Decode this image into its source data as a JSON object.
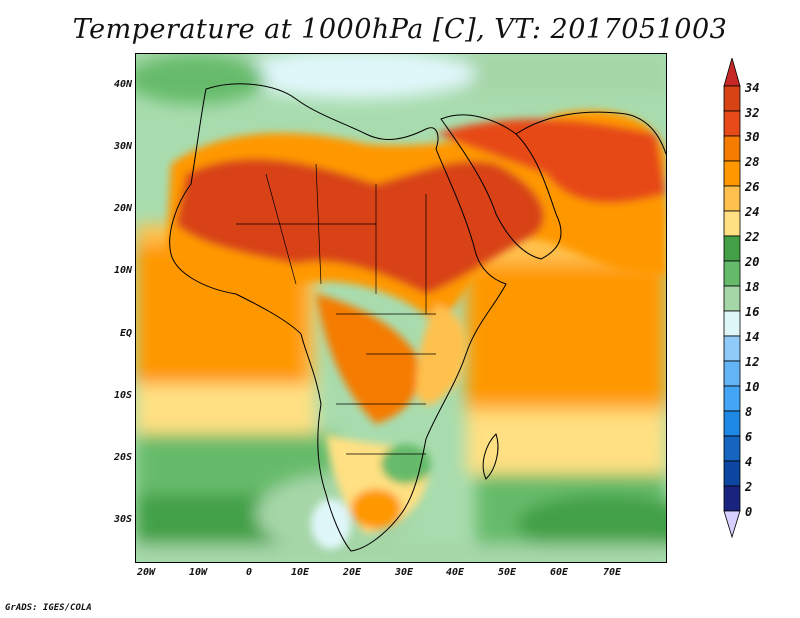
{
  "title": "Temperature at 1000hPa [C], VT: 2017051003",
  "footer": "GrADS: IGES/COLA",
  "map": {
    "region": "Africa, Middle East and South Asia",
    "lon_range": [
      -22,
      80
    ],
    "lat_range": [
      -36,
      45
    ],
    "lat_ticks": [
      "40N",
      "30N",
      "20N",
      "10N",
      "EQ",
      "10S",
      "20S",
      "30S"
    ],
    "lon_ticks": [
      "20W",
      "10W",
      "0",
      "10E",
      "20E",
      "30E",
      "40E",
      "50E",
      "60E",
      "70E"
    ]
  },
  "colorbar": {
    "labels": [
      "34",
      "32",
      "30",
      "28",
      "26",
      "24",
      "22",
      "20",
      "18",
      "16",
      "14",
      "12",
      "10",
      "8",
      "6",
      "4",
      "2",
      "0"
    ],
    "colors": [
      "#d8d0ff",
      "#1a237e",
      "#0d47a1",
      "#1565c0",
      "#1e88e5",
      "#42a5f5",
      "#64b5f6",
      "#90caf9",
      "#e0f7fa",
      "#a5d6a7",
      "#66bb6a",
      "#43a047",
      "#ffe082",
      "#ffc14d",
      "#ff9800",
      "#f57c00",
      "#e64a19",
      "#d84315",
      "#c62828"
    ]
  }
}
